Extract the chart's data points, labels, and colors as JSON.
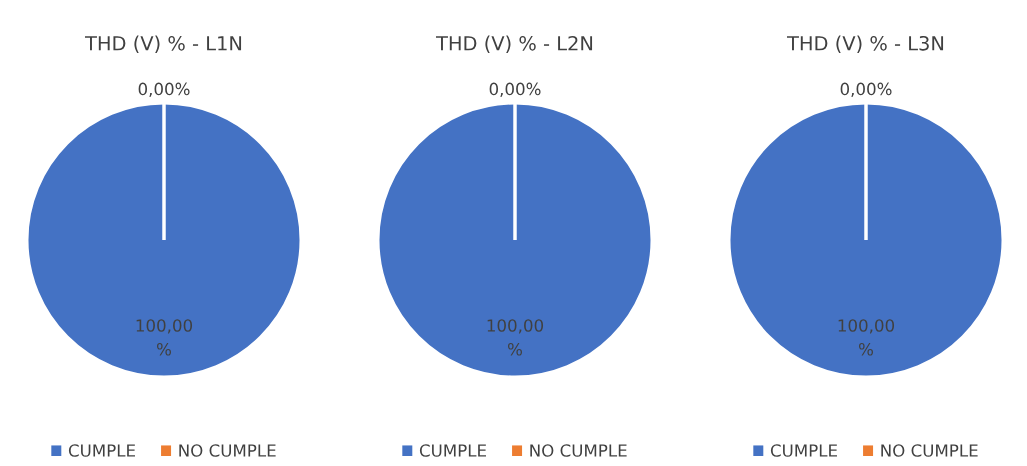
{
  "chart_data": [
    {
      "type": "pie",
      "title": "THD (V) % - L1N",
      "categories": [
        "CUMPLE",
        "NO CUMPLE"
      ],
      "values": [
        100,
        0
      ],
      "colors": [
        "#4472c4",
        "#ed7d31"
      ],
      "value_labels": [
        "100,00\n%",
        "0,00%"
      ],
      "legend": "bottom"
    },
    {
      "type": "pie",
      "title": "THD (V) % - L2N",
      "categories": [
        "CUMPLE",
        "NO CUMPLE"
      ],
      "values": [
        100,
        0
      ],
      "colors": [
        "#4472c4",
        "#ed7d31"
      ],
      "value_labels": [
        "100,00\n%",
        "0,00%"
      ],
      "legend": "bottom"
    },
    {
      "type": "pie",
      "title": "THD (V) % - L3N",
      "categories": [
        "CUMPLE",
        "NO CUMPLE"
      ],
      "values": [
        100,
        0
      ],
      "colors": [
        "#4472c4",
        "#ed7d31"
      ],
      "value_labels": [
        "100,00\n%",
        "0,00%"
      ],
      "legend": "bottom"
    }
  ]
}
